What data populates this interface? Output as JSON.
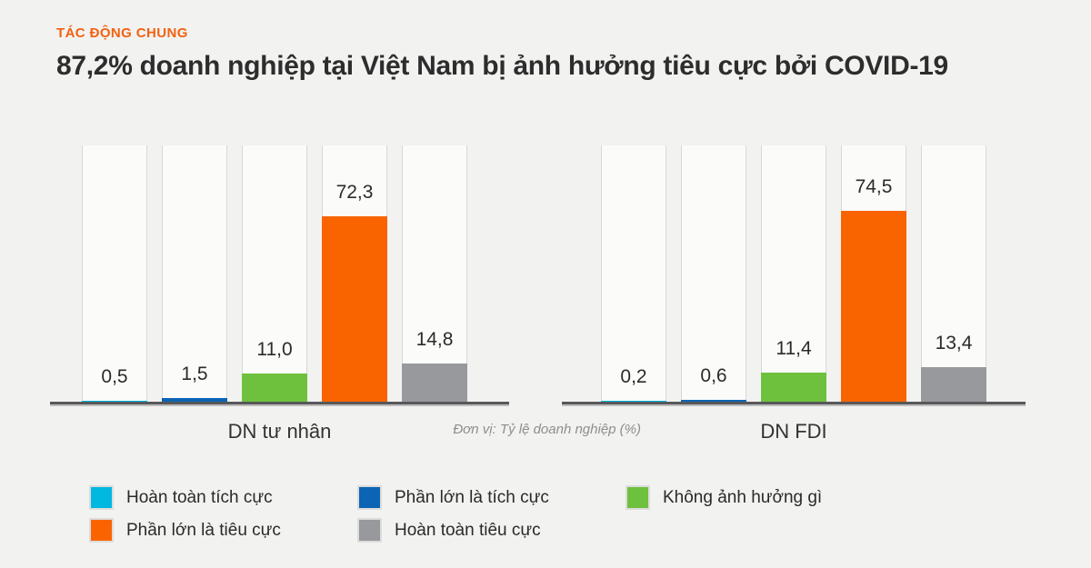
{
  "page": {
    "background_color": "#f2f2f1",
    "accent_color": "#f4610f"
  },
  "header": {
    "eyebrow": "TÁC ĐỘNG CHUNG",
    "title": "87,2% doanh nghiệp tại Việt Nam bị ảnh hưởng tiêu cực bởi COVID-19"
  },
  "chart_data": {
    "type": "bar",
    "title": "87,2% doanh nghiệp tại Việt Nam bị ảnh hưởng tiêu cực bởi COVID-19",
    "unit_note": "Đơn vị: Tỷ lệ doanh nghiệp (%)",
    "ylim": [
      0,
      100
    ],
    "grid": false,
    "legend_position": "bottom",
    "categories": [
      "DN tư nhân",
      "DN FDI"
    ],
    "series": [
      {
        "name": "Hoàn toàn tích cực",
        "color": "#00b8e0",
        "values": [
          0.5,
          0.2
        ],
        "display_values": [
          "0,5",
          "0,2"
        ]
      },
      {
        "name": "Phần lớn là tích cực",
        "color": "#0b64b4",
        "values": [
          1.5,
          0.6
        ],
        "display_values": [
          "1,5",
          "0,6"
        ]
      },
      {
        "name": "Không ảnh hưởng gì",
        "color": "#6ec13d",
        "values": [
          11.0,
          11.4
        ],
        "display_values": [
          "11,0",
          "11,4"
        ]
      },
      {
        "name": "Phần lớn là tiêu cực",
        "color": "#fa6400",
        "values": [
          72.3,
          74.5
        ],
        "display_values": [
          "72,3",
          "74,5"
        ]
      },
      {
        "name": "Hoàn toàn tiêu cực",
        "color": "#97999d",
        "values": [
          14.8,
          13.4
        ],
        "display_values": [
          "14,8",
          "13,4"
        ]
      }
    ],
    "legend_rows": [
      [
        0,
        1,
        2
      ],
      [
        3,
        4
      ]
    ]
  }
}
